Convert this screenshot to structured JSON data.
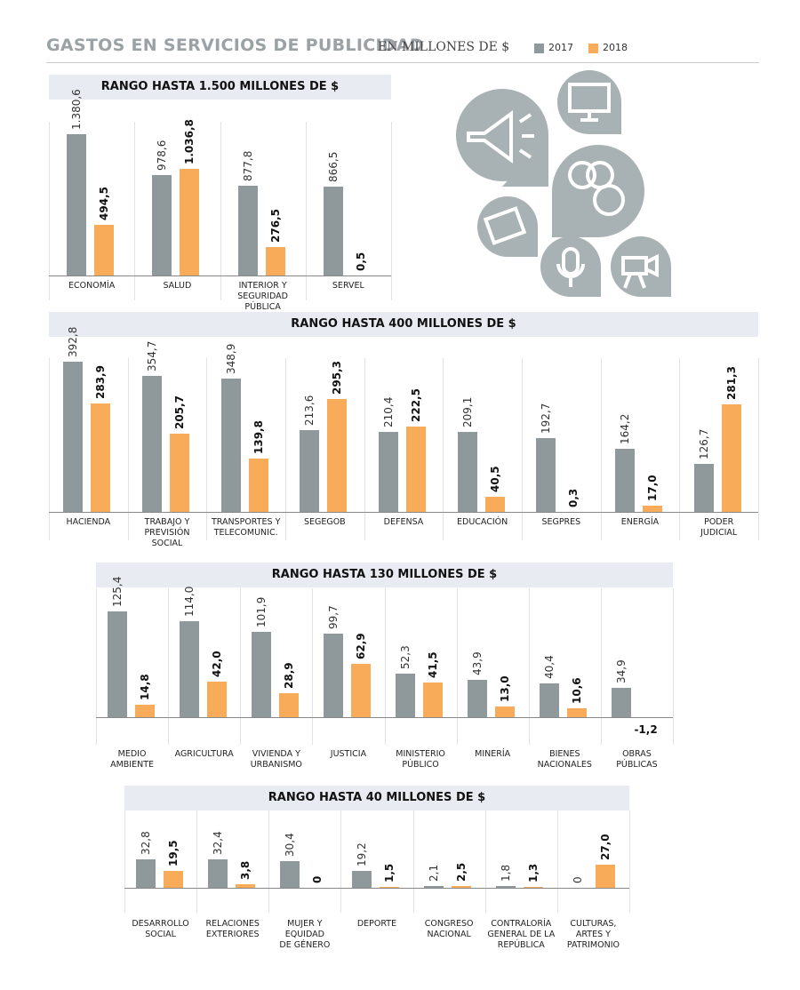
{
  "header": {
    "title": "GASTOS EN SERVICIOS DE PUBLICIDAD",
    "subtitle": "EN MILLONES DE $"
  },
  "chart_data": [
    {
      "type": "bar",
      "title": "RANGO HASTA 1.500 MILLONES DE $",
      "categories": [
        "ECONOMÍA",
        "SALUD",
        "INTERIOR Y\nSEGURIDAD PÚBLICA",
        "SERVEL"
      ],
      "series": [
        {
          "name": "2017",
          "color": "#8f999c",
          "values": [
            1380.6,
            978.6,
            877.8,
            866.5
          ],
          "value_labels": [
            "1.380,6",
            "978,6",
            "877,8",
            "866,5"
          ]
        },
        {
          "name": "2018",
          "color": "#f8ac5a",
          "values": [
            494.5,
            1036.8,
            276.5,
            0.5
          ],
          "value_labels": [
            "494,5",
            "1.036,8",
            "276,5",
            "0,5"
          ]
        }
      ],
      "ylim": [
        0,
        1500
      ]
    },
    {
      "type": "bar",
      "title": "RANGO HASTA 400 MILLONES DE $",
      "categories": [
        "HACIENDA",
        "TRABAJO Y\nPREVISIÓN SOCIAL",
        "TRANSPORTES Y\nTELECOMUNIC.",
        "SEGEGOB",
        "DEFENSA",
        "EDUCACIÓN",
        "SEGPRES",
        "ENERGÍA",
        "PODER\nJUDICIAL"
      ],
      "series": [
        {
          "name": "2017",
          "color": "#8f999c",
          "values": [
            392.8,
            354.7,
            348.9,
            213.6,
            210.4,
            209.1,
            192.7,
            164.2,
            126.7
          ],
          "value_labels": [
            "392,8",
            "354,7",
            "348,9",
            "213,6",
            "210,4",
            "209,1",
            "192,7",
            "164,2",
            "126,7"
          ]
        },
        {
          "name": "2018",
          "color": "#f8ac5a",
          "values": [
            283.9,
            205.7,
            139.8,
            295.3,
            222.5,
            40.5,
            0.3,
            17.0,
            281.3
          ],
          "value_labels": [
            "283,9",
            "205,7",
            "139,8",
            "295,3",
            "222,5",
            "40,5",
            "0,3",
            "17,0",
            "281,3"
          ]
        }
      ],
      "ylim": [
        0,
        400
      ]
    },
    {
      "type": "bar",
      "title": "RANGO HASTA 130 MILLONES DE $",
      "categories": [
        "MEDIO\nAMBIENTE",
        "AGRICULTURA",
        "VIVIENDA Y\nURBANISMO",
        "JUSTICIA",
        "MINISTERIO\nPÚBLICO",
        "MINERÍA",
        "BIENES\nNACIONALES",
        "OBRAS\nPÚBLICAS"
      ],
      "series": [
        {
          "name": "2017",
          "color": "#8f999c",
          "values": [
            125.4,
            114.0,
            101.9,
            99.7,
            52.3,
            43.9,
            40.4,
            34.9
          ],
          "value_labels": [
            "125,4",
            "114,0",
            "101,9",
            "99,7",
            "52,3",
            "43,9",
            "40,4",
            "34,9"
          ]
        },
        {
          "name": "2018",
          "color": "#f8ac5a",
          "values": [
            14.8,
            42.0,
            28.9,
            62.9,
            41.5,
            13.0,
            10.6,
            -1.2
          ],
          "value_labels": [
            "14,8",
            "42,0",
            "28,9",
            "62,9",
            "41,5",
            "13,0",
            "10,6",
            "-1,2"
          ]
        }
      ],
      "ylim": [
        0,
        130
      ]
    },
    {
      "type": "bar",
      "title": "RANGO HASTA 40 MILLONES DE $",
      "categories": [
        "DESARROLLO\nSOCIAL",
        "RELACIONES\nEXTERIORES",
        "MUJER Y\nEQUIDAD\nDE GÉNERO",
        "DEPORTE",
        "CONGRESO\nNACIONAL",
        "CONTRALORÍA\nGENERAL DE LA\nREPÚBLICA",
        "CULTURAS,\nARTES Y\nPATRIMONIO"
      ],
      "series": [
        {
          "name": "2017",
          "color": "#8f999c",
          "values": [
            32.8,
            32.4,
            30.4,
            19.2,
            2.1,
            1.8,
            0
          ],
          "value_labels": [
            "32,8",
            "32,4",
            "30,4",
            "19,2",
            "2,1",
            "1,8",
            "0"
          ]
        },
        {
          "name": "2018",
          "color": "#f8ac5a",
          "values": [
            19.5,
            3.8,
            0,
            1.5,
            2.5,
            1.3,
            27.0
          ],
          "value_labels": [
            "19,5",
            "3,8",
            "0",
            "1,5",
            "2,5",
            "1,3",
            "27,0"
          ]
        }
      ],
      "ylim": [
        0,
        40
      ]
    }
  ]
}
